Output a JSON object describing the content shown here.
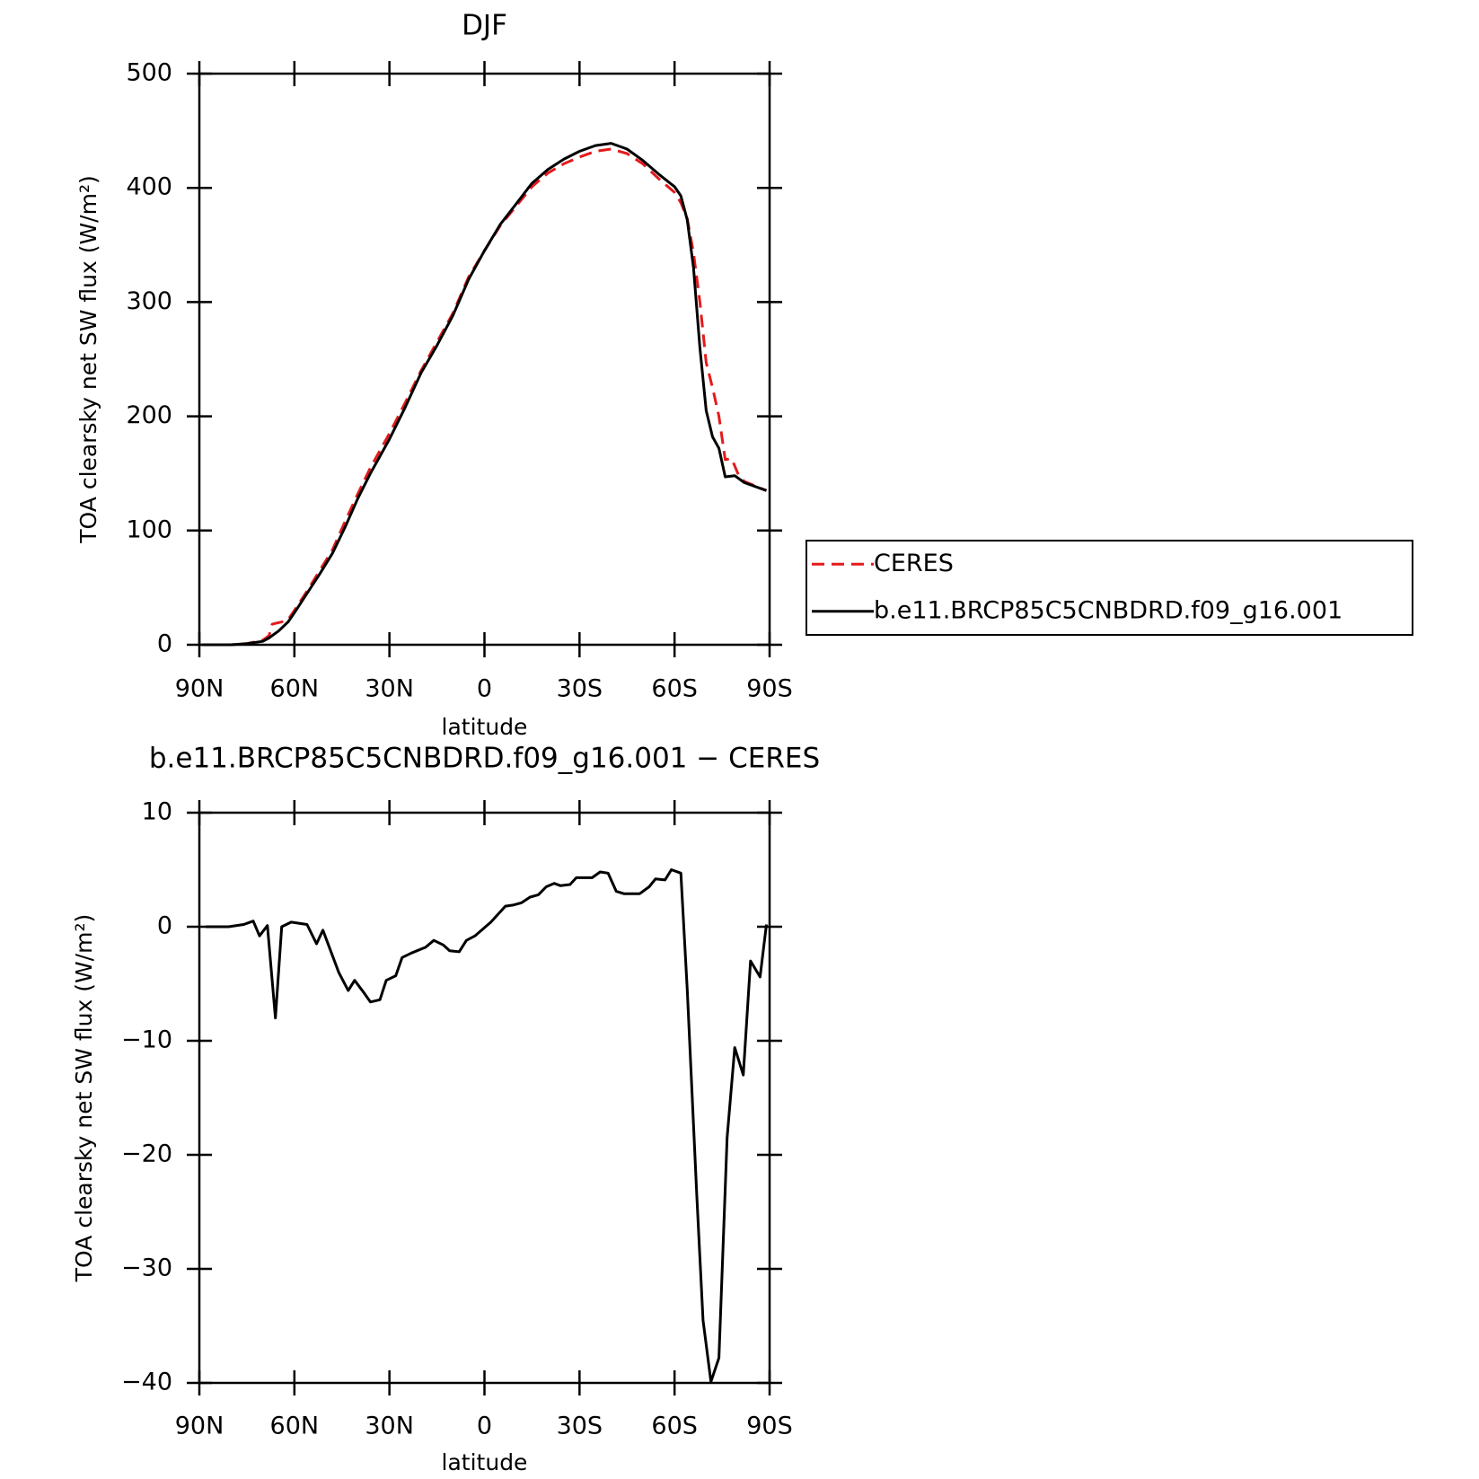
{
  "chart_data": [
    {
      "type": "line",
      "title": "DJF",
      "xlabel": "latitude",
      "ylabel": "TOA clearsky net SW flux (W/m²)",
      "xlim": [
        90,
        -90
      ],
      "ylim": [
        0,
        500
      ],
      "xticks": [
        {
          "value": 90,
          "label": "90N"
        },
        {
          "value": 60,
          "label": "60N"
        },
        {
          "value": 30,
          "label": "30N"
        },
        0,
        {
          "value": -30,
          "label": "30S"
        },
        {
          "value": -60,
          "label": "60S"
        },
        {
          "value": -90,
          "label": "90S"
        }
      ],
      "yticks": [
        0,
        100,
        200,
        300,
        400,
        500
      ],
      "series": [
        {
          "name": "CERES",
          "color": "#e41a1c",
          "dashed": true,
          "x": [
            89,
            80,
            75,
            70,
            68,
            67,
            64,
            62,
            60,
            56,
            52,
            48,
            44,
            40,
            36,
            30,
            25,
            20,
            15,
            10,
            5,
            0,
            -5,
            -10,
            -15,
            -20,
            -25,
            -30,
            -35,
            -40,
            -45,
            -50,
            -55,
            -60,
            -62,
            -64,
            -66,
            -68,
            -70,
            -72,
            -74,
            -76,
            -78,
            -80,
            -82,
            -89
          ],
          "values": [
            0,
            0,
            1,
            4,
            8,
            18,
            20,
            22,
            30,
            47,
            65,
            83,
            108,
            132,
            155,
            185,
            212,
            240,
            265,
            290,
            322,
            345,
            367,
            384,
            401,
            413,
            421,
            427,
            432,
            434,
            430,
            421,
            408,
            396,
            387,
            373,
            343,
            300,
            247,
            225,
            200,
            162,
            163,
            150,
            143,
            135
          ]
        },
        {
          "name": "b.e11.BRCP85C5CNBDRD.f09_g16.001",
          "color": "#000000",
          "dashed": false,
          "x": [
            89,
            80,
            75,
            70,
            68,
            65,
            62,
            60,
            56,
            52,
            48,
            44,
            40,
            36,
            30,
            25,
            20,
            15,
            10,
            5,
            0,
            -5,
            -10,
            -15,
            -20,
            -25,
            -30,
            -35,
            -40,
            -45,
            -50,
            -55,
            -60,
            -62,
            -64,
            -66,
            -68,
            -70,
            -72,
            -74,
            -76,
            -79,
            -82,
            -89
          ],
          "values": [
            0,
            0,
            1,
            3,
            6,
            12,
            20,
            28,
            45,
            62,
            80,
            103,
            128,
            150,
            180,
            208,
            238,
            262,
            288,
            320,
            345,
            368,
            386,
            404,
            416,
            425,
            432,
            437,
            439,
            434,
            424,
            412,
            401,
            393,
            372,
            330,
            260,
            205,
            182,
            172,
            147,
            148,
            142,
            135
          ]
        }
      ]
    },
    {
      "type": "line",
      "title": "b.e11.BRCP85C5CNBDRD.f09_g16.001 − CERES",
      "xlabel": "latitude",
      "ylabel": "TOA clearsky net SW flux (W/m²)",
      "xlim": [
        90,
        -90
      ],
      "ylim": [
        -40,
        10
      ],
      "xticks": [
        {
          "value": 90,
          "label": "90N"
        },
        {
          "value": 60,
          "label": "60N"
        },
        {
          "value": 30,
          "label": "30N"
        },
        0,
        {
          "value": -30,
          "label": "30S"
        },
        {
          "value": -60,
          "label": "60S"
        },
        {
          "value": -90,
          "label": "90S"
        }
      ],
      "yticks": [
        {
          "value": -40,
          "label": "−40"
        },
        {
          "value": -30,
          "label": "−30"
        },
        {
          "value": -20,
          "label": "−20"
        },
        {
          "value": -10,
          "label": "−10"
        },
        0,
        10
      ],
      "series": [
        {
          "color": "#000000",
          "dashed": false,
          "x": [
            88,
            80.8,
            76,
            73,
            71,
            68.5,
            66,
            64,
            61,
            56,
            53,
            51,
            46,
            43,
            41,
            38,
            36,
            33,
            31,
            28,
            26,
            23,
            18.6,
            16,
            13,
            11,
            8,
            5.7,
            3,
            -2,
            -6.6,
            -9,
            -11.7,
            -14.4,
            -17,
            -19.5,
            -22,
            -24,
            -27,
            -29,
            -34,
            -36.5,
            -39,
            -41.6,
            -44,
            -46.7,
            -49,
            -52,
            -54,
            -57,
            -59,
            -62,
            -64,
            -67,
            -69,
            -71.5,
            -74,
            -76.6,
            -79,
            -81.7,
            -84,
            -87,
            -89
          ],
          "values": [
            0,
            0,
            0.2,
            0.5,
            -0.8,
            0.1,
            -8,
            0,
            0.4,
            0.2,
            -1.5,
            -0.3,
            -4,
            -5.6,
            -4.7,
            -5.8,
            -6.6,
            -6.4,
            -4.7,
            -4.3,
            -2.7,
            -2.3,
            -1.8,
            -1.2,
            -1.6,
            -2.1,
            -2.2,
            -1.2,
            -0.8,
            0.4,
            1.8,
            1.9,
            2.1,
            2.6,
            2.8,
            3.5,
            3.8,
            3.6,
            3.7,
            4.3,
            4.3,
            4.8,
            4.7,
            3.1,
            2.9,
            2.9,
            2.9,
            3.5,
            4.2,
            4.1,
            5.0,
            4.7,
            -5.5,
            -23.5,
            -34.5,
            -39.9,
            -37.8,
            -18.5,
            -10.6,
            -13,
            -3,
            -4.4,
            0.2
          ]
        }
      ]
    }
  ]
}
